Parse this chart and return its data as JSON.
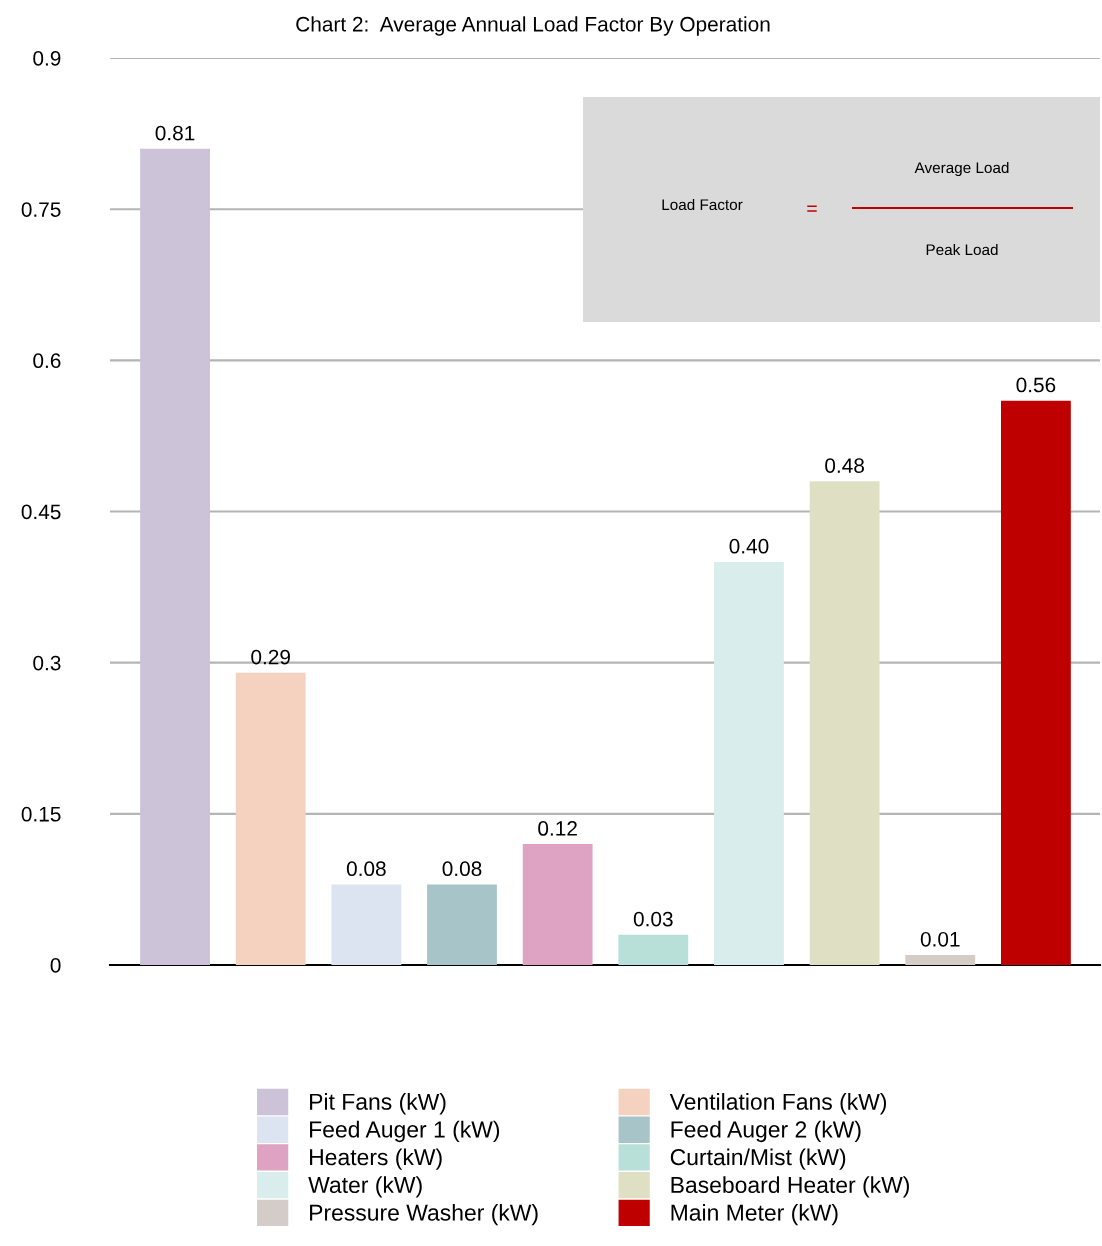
{
  "chart_data": {
    "type": "bar",
    "title": "Chart 2:  Average Annual Load Factor By Operation",
    "categories": [
      null,
      null,
      null,
      null,
      null,
      null,
      null,
      null,
      null,
      null
    ],
    "series": [
      {
        "name": "Pit Fans (kW)",
        "color": "#cdc3d8",
        "values": [
          0.81,
          null,
          null,
          null,
          null,
          null,
          null,
          null,
          null,
          null
        ],
        "value_labels": [
          "0.81",
          null,
          null,
          null,
          null,
          null,
          null,
          null,
          null,
          null
        ]
      },
      {
        "name": "Ventilation Fans (kW)",
        "color": "#f5d2bf",
        "values": [
          null,
          0.29,
          null,
          null,
          null,
          null,
          null,
          null,
          null,
          null
        ],
        "value_labels": [
          null,
          "0.29",
          null,
          null,
          null,
          null,
          null,
          null,
          null,
          null
        ]
      },
      {
        "name": "Feed Auger 1 (kW)",
        "color": "#dde4f1",
        "values": [
          null,
          null,
          0.08,
          null,
          null,
          null,
          null,
          null,
          null,
          null
        ],
        "value_labels": [
          null,
          null,
          "0.08",
          null,
          null,
          null,
          null,
          null,
          null,
          null
        ]
      },
      {
        "name": "Feed Auger 2 (kW)",
        "color": "#a7c5c9",
        "values": [
          null,
          null,
          null,
          0.08,
          null,
          null,
          null,
          null,
          null,
          null
        ],
        "value_labels": [
          null,
          null,
          null,
          "0.08",
          null,
          null,
          null,
          null,
          null,
          null
        ]
      },
      {
        "name": "Heaters (kW)",
        "color": "#dea2c3",
        "values": [
          null,
          null,
          null,
          null,
          0.12,
          null,
          null,
          null,
          null,
          null
        ],
        "value_labels": [
          null,
          null,
          null,
          null,
          "0.12",
          null,
          null,
          null,
          null,
          null
        ]
      },
      {
        "name": "Curtain/Mist (kW)",
        "color": "#b8e0d8",
        "values": [
          null,
          null,
          null,
          null,
          null,
          0.03,
          null,
          null,
          null,
          null
        ],
        "value_labels": [
          null,
          null,
          null,
          null,
          null,
          "0.03",
          null,
          null,
          null,
          null
        ]
      },
      {
        "name": "Water (kW)",
        "color": "#d9eeec",
        "values": [
          null,
          null,
          null,
          null,
          null,
          null,
          0.4,
          null,
          null,
          null
        ],
        "value_labels": [
          null,
          null,
          null,
          null,
          null,
          null,
          "0.40",
          null,
          null,
          null
        ]
      },
      {
        "name": "Baseboard Heater (kW)",
        "color": "#dfe0c3",
        "values": [
          null,
          null,
          null,
          null,
          null,
          null,
          null,
          0.48,
          null,
          null
        ],
        "value_labels": [
          null,
          null,
          null,
          null,
          null,
          null,
          null,
          "0.48",
          null,
          null
        ]
      },
      {
        "name": "Pressure Washer (kW)",
        "color": "#d3ccc8",
        "values": [
          null,
          null,
          null,
          null,
          null,
          null,
          null,
          null,
          0.01,
          null
        ],
        "value_labels": [
          null,
          null,
          null,
          null,
          null,
          null,
          null,
          null,
          "0.01",
          null
        ]
      },
      {
        "name": "Main Meter (kW)",
        "color": "#bf0000",
        "values": [
          null,
          null,
          null,
          null,
          null,
          null,
          null,
          null,
          null,
          0.56
        ],
        "value_labels": [
          null,
          null,
          null,
          null,
          null,
          null,
          null,
          null,
          null,
          "0.56"
        ]
      }
    ],
    "ylim": [
      0,
      0.9
    ],
    "yticks": [
      0,
      0.15,
      0.3,
      0.45,
      0.6,
      0.75,
      0.9
    ],
    "grid": "y",
    "legend": "bottom",
    "tick_labels": "y",
    "annotations": [
      "Load Factor",
      "=",
      "Average Load",
      "Peak Load"
    ]
  }
}
